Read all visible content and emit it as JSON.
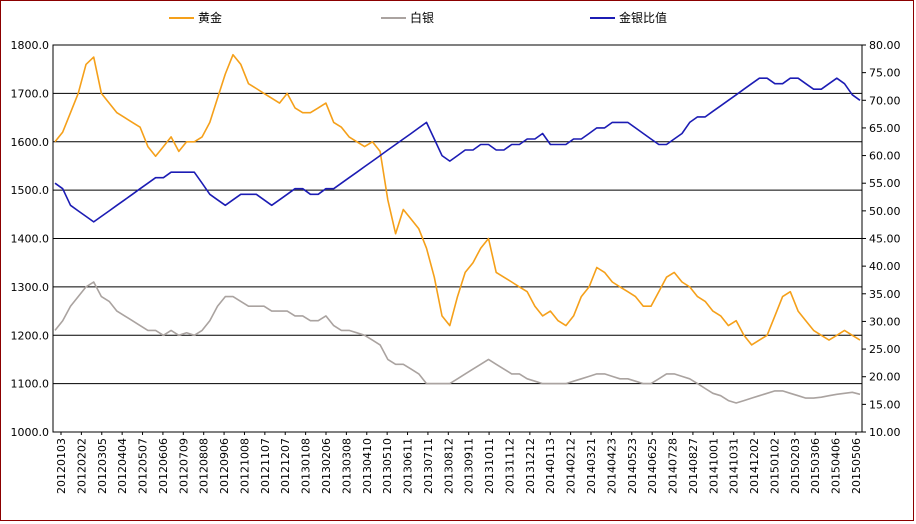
{
  "chart_data": {
    "type": "line",
    "title": "",
    "legend_position": "top",
    "grid": true,
    "y_left": {
      "min": 1000,
      "max": 1800,
      "step": 100,
      "tick_labels": [
        "1000.0",
        "1100.0",
        "1200.0",
        "1300.0",
        "1400.0",
        "1500.0",
        "1600.0",
        "1700.0",
        "1800.0"
      ]
    },
    "y_right": {
      "min": 10,
      "max": 80,
      "step": 5,
      "tick_labels": [
        "10.00",
        "15.00",
        "20.00",
        "25.00",
        "30.00",
        "35.00",
        "40.00",
        "45.00",
        "50.00",
        "55.00",
        "60.00",
        "65.00",
        "70.00",
        "75.00",
        "80.00"
      ]
    },
    "x_tick_labels": [
      "20120103",
      "20120202",
      "20120305",
      "20120404",
      "20120507",
      "20120606",
      "20120709",
      "20120808",
      "20120906",
      "20121008",
      "20121107",
      "20121207",
      "20130108",
      "20130206",
      "20130308",
      "20130410",
      "20130510",
      "20130611",
      "20130711",
      "20130812",
      "20130911",
      "20131011",
      "20131112",
      "20131212",
      "20140113",
      "20140212",
      "20140321",
      "20140423",
      "20140523",
      "20140625",
      "20140728",
      "20140827",
      "20141001",
      "20141031",
      "20141202",
      "20150102",
      "20150203",
      "20150306",
      "20150406",
      "20150506"
    ],
    "series": [
      {
        "name": "黄金",
        "axis": "left",
        "color": "#f5a01a",
        "values": [
          1600,
          1620,
          1660,
          1700,
          1760,
          1775,
          1700,
          1680,
          1660,
          1650,
          1640,
          1630,
          1590,
          1570,
          1590,
          1610,
          1580,
          1600,
          1600,
          1610,
          1640,
          1690,
          1740,
          1780,
          1760,
          1720,
          1710,
          1700,
          1690,
          1680,
          1700,
          1670,
          1660,
          1660,
          1670,
          1680,
          1640,
          1630,
          1610,
          1600,
          1590,
          1600,
          1580,
          1480,
          1410,
          1460,
          1440,
          1420,
          1380,
          1320,
          1240,
          1220,
          1280,
          1330,
          1350,
          1380,
          1400,
          1330,
          1320,
          1310,
          1300,
          1290,
          1260,
          1240,
          1250,
          1230,
          1220,
          1240,
          1280,
          1300,
          1340,
          1330,
          1310,
          1300,
          1290,
          1280,
          1260,
          1260,
          1290,
          1320,
          1330,
          1310,
          1300,
          1280,
          1270,
          1250,
          1240,
          1220,
          1230,
          1200,
          1180,
          1190,
          1200,
          1240,
          1280,
          1290,
          1250,
          1230,
          1210,
          1200,
          1190,
          1200,
          1210,
          1200,
          1190
        ]
      },
      {
        "name": "白银",
        "axis": "left",
        "color": "#aaa3a0",
        "values": [
          1210,
          1230,
          1260,
          1280,
          1300,
          1310,
          1280,
          1270,
          1250,
          1240,
          1230,
          1220,
          1210,
          1210,
          1200,
          1210,
          1200,
          1205,
          1200,
          1210,
          1230,
          1260,
          1280,
          1280,
          1270,
          1260,
          1260,
          1260,
          1250,
          1250,
          1250,
          1240,
          1240,
          1230,
          1230,
          1240,
          1220,
          1210,
          1210,
          1205,
          1200,
          1190,
          1180,
          1150,
          1140,
          1140,
          1130,
          1120,
          1100,
          1100,
          1100,
          1100,
          1110,
          1120,
          1130,
          1140,
          1150,
          1140,
          1130,
          1120,
          1120,
          1110,
          1105,
          1100,
          1100,
          1100,
          1100,
          1105,
          1110,
          1115,
          1120,
          1120,
          1115,
          1110,
          1110,
          1105,
          1100,
          1100,
          1110,
          1120,
          1120,
          1115,
          1110,
          1100,
          1090,
          1080,
          1075,
          1065,
          1060,
          1065,
          1070,
          1075,
          1080,
          1085,
          1085,
          1080,
          1075,
          1070,
          1070,
          1072,
          1075,
          1078,
          1080,
          1082,
          1078
        ]
      },
      {
        "name": "金银比值",
        "axis": "right",
        "color": "#1c1cb4",
        "values": [
          55,
          54,
          51,
          50,
          49,
          48,
          49,
          50,
          51,
          52,
          53,
          54,
          55,
          56,
          56,
          57,
          57,
          57,
          57,
          55,
          53,
          52,
          51,
          52,
          53,
          53,
          53,
          52,
          51,
          52,
          53,
          54,
          54,
          53,
          53,
          54,
          54,
          55,
          56,
          57,
          58,
          59,
          60,
          61,
          62,
          63,
          64,
          65,
          66,
          63,
          60,
          59,
          60,
          61,
          61,
          62,
          62,
          61,
          61,
          62,
          62,
          63,
          63,
          64,
          62,
          62,
          62,
          63,
          63,
          64,
          65,
          65,
          66,
          66,
          66,
          65,
          64,
          63,
          62,
          62,
          63,
          64,
          66,
          67,
          67,
          68,
          69,
          70,
          71,
          72,
          73,
          74,
          74,
          73,
          73,
          74,
          74,
          73,
          72,
          72,
          73,
          74,
          73,
          71,
          70
        ]
      }
    ]
  }
}
